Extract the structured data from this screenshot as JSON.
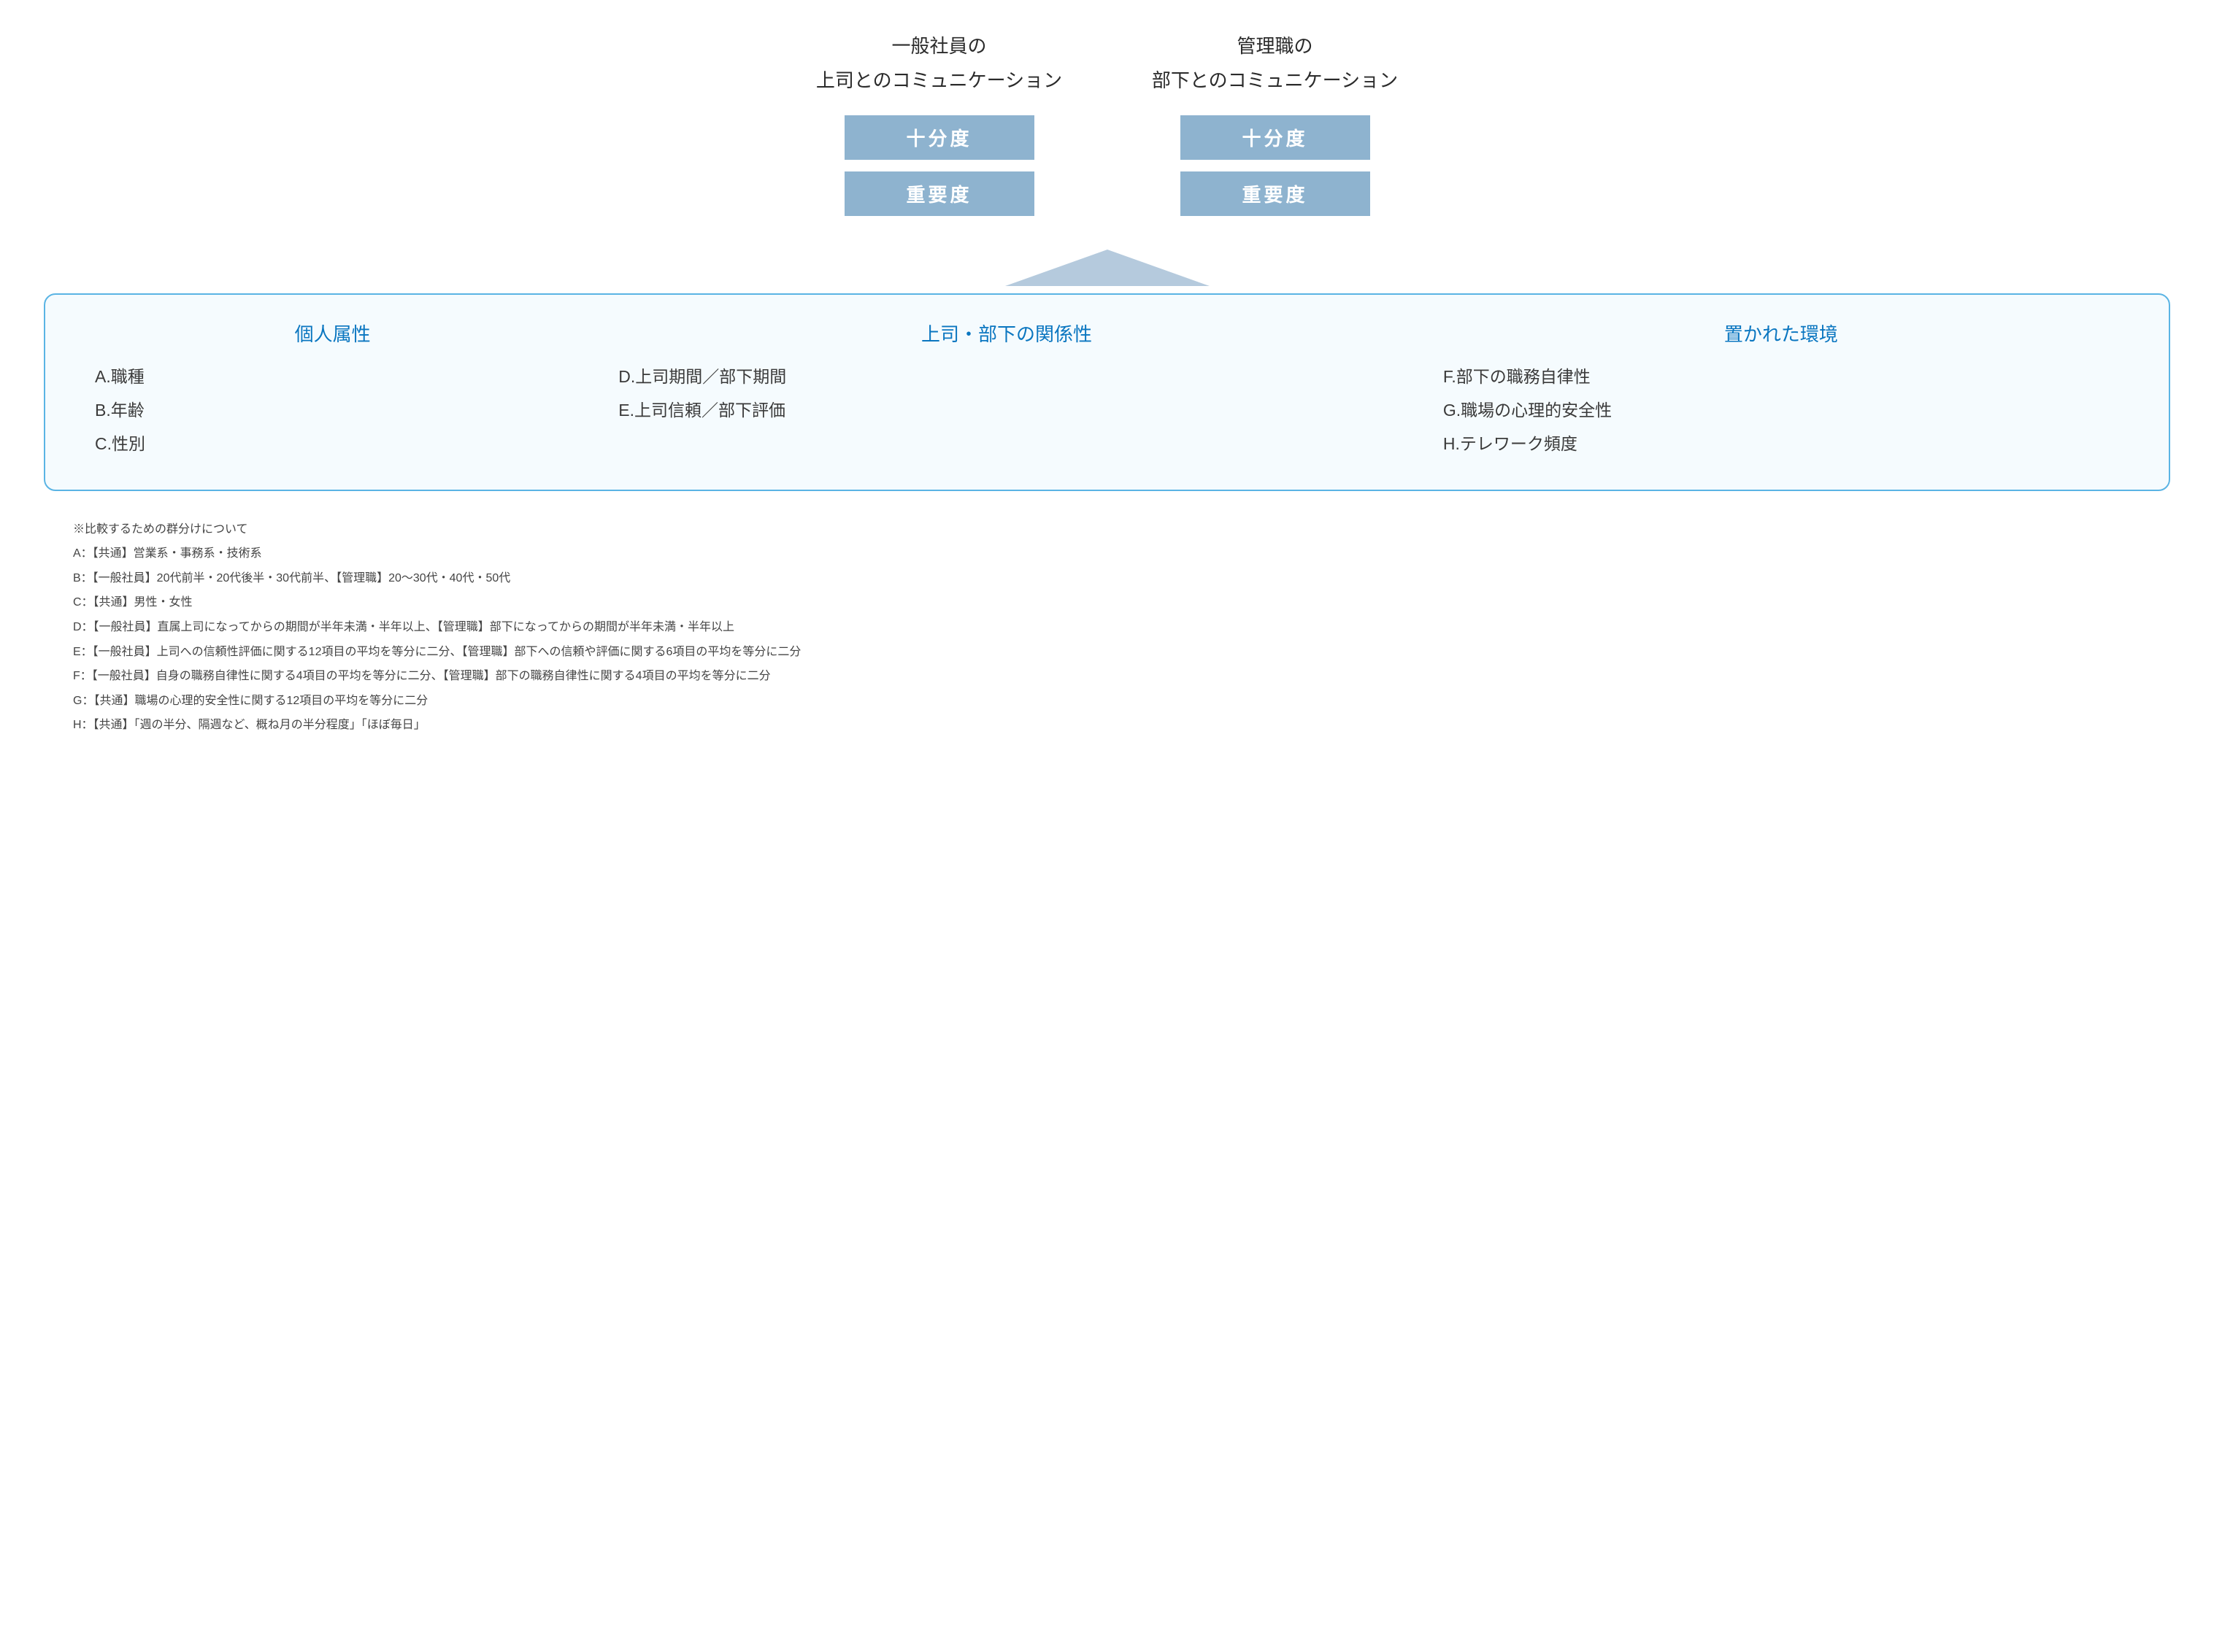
{
  "colors": {
    "metric_bg": "#8eb3cf",
    "metric_text": "#ffffff",
    "triangle_fill": "#b5cadd",
    "factors_border": "#5ab4e4",
    "factors_bg": "#f5fbfe",
    "factor_title": "#0a76c0",
    "body_text": "#333333",
    "note_text": "#444444"
  },
  "top": {
    "left": {
      "line1": "一般社員の",
      "line2": "上司とのコミュニケーション",
      "metric1": "十分度",
      "metric2": "重要度"
    },
    "right": {
      "line1": "管理職の",
      "line2": "部下とのコミュニケーション",
      "metric1": "十分度",
      "metric2": "重要度"
    }
  },
  "factors": {
    "col1": {
      "title": "個人属性",
      "items": [
        "A.職種",
        "B.年齢",
        "C.性別"
      ]
    },
    "col2": {
      "title": "上司・部下の関係性",
      "items": [
        "D.上司期間／部下期間",
        "E.上司信頼／部下評価"
      ]
    },
    "col3": {
      "title": "置かれた環境",
      "items": [
        "F.部下の職務自律性",
        "G.職場の心理的安全性",
        "H.テレワーク頻度"
      ]
    }
  },
  "notes": {
    "header": "※比較するための群分けについて",
    "lines": [
      "A：【共通】営業系・事務系・技術系",
      "B：【一般社員】20代前半・20代後半・30代前半、【管理職】20〜30代・40代・50代",
      "C：【共通】男性・女性",
      "D：【一般社員】直属上司になってからの期間が半年未満・半年以上、【管理職】部下になってからの期間が半年未満・半年以上",
      "E：【一般社員】上司への信頼性評価に関する12項目の平均を等分に二分、【管理職】部下への信頼や評価に関する6項目の平均を等分に二分",
      "F：【一般社員】自身の職務自律性に関する4項目の平均を等分に二分、【管理職】部下の職務自律性に関する4項目の平均を等分に二分",
      "G：【共通】職場の心理的安全性に関する12項目の平均を等分に二分",
      "H：【共通】「週の半分、隔週など、概ね月の半分程度」「ほぼ毎日」"
    ]
  }
}
